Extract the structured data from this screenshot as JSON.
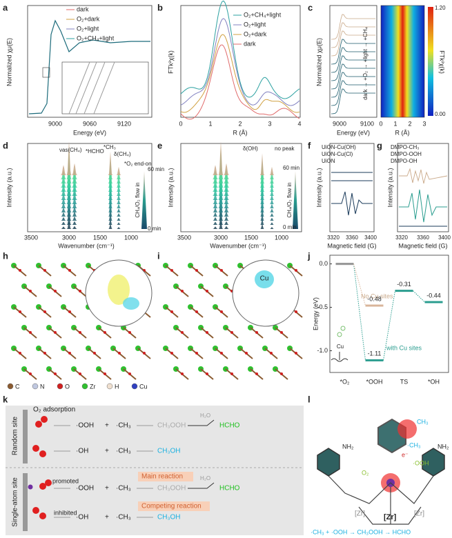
{
  "panels": {
    "a": {
      "letter": "a",
      "ylabel": "Normalized χμ(E)",
      "xlabel": "Energy (eV)",
      "xticks": [
        "9000",
        "9060",
        "9120"
      ],
      "legend": [
        "dark",
        "O₂+dark",
        "O₂+light",
        "O₂+CH₄+light"
      ]
    },
    "b": {
      "letter": "b",
      "ylabel": "FTk²χ(k)",
      "xlabel": "R (Å)",
      "xticks": [
        "0",
        "1",
        "2",
        "3",
        "4"
      ],
      "legend": [
        "O₂+CH₄+light",
        "O₂+light",
        "O₂+dark",
        "dark"
      ]
    },
    "c": {
      "letter": "c",
      "ylabel": "Normalized χμ(E)",
      "xlabel": "Energy (eV)",
      "xticks": [
        "9000",
        "9100"
      ],
      "sequence": "dark → +O₂ → +light → +CH₄",
      "xlabel2": "R (Å)",
      "xticks2": [
        "0",
        "1",
        "2",
        "3"
      ],
      "cbar_label": "FTk²χ(k)",
      "cbar_ticks": [
        "1.20",
        "0.00"
      ]
    },
    "d": {
      "letter": "d",
      "ylabel": "Intensity (a.u.)",
      "xlabel": "Wavenumber (cm⁻¹)",
      "xticks": [
        "3500",
        "3000",
        "1500",
        "1000"
      ],
      "annotations": [
        "νas(CH₄)",
        "*HCHO",
        "*CH₃",
        "δ(CH₄)",
        "*O₂ end-on"
      ],
      "flow": "CH₄/O₂ flow in",
      "time_end": "60 min",
      "time_start": "0 min"
    },
    "e": {
      "letter": "e",
      "ylabel": "Intensity (a.u.)",
      "xlabel": "Wavenumber (cm⁻¹)",
      "xticks": [
        "3500",
        "3000",
        "1500",
        "1000"
      ],
      "annotations": [
        "δ(OH)",
        "no peak"
      ],
      "flow": "CH₄/O₂ flow in",
      "time_end": "60 min",
      "time_start": "0 min"
    },
    "f": {
      "letter": "f",
      "ylabel": "Intensity (a.u.)",
      "xlabel": "Magnetic field (G)",
      "xticks": [
        "3320",
        "3360",
        "3400"
      ],
      "legend": [
        "UiON-Cu(OH)",
        "UiON-Cu(Cl)",
        "UiON"
      ]
    },
    "g": {
      "letter": "g",
      "ylabel": "Intensity (a.u.)",
      "xlabel": "Magnetic field (G)",
      "xticks": [
        "3320",
        "3360",
        "3400"
      ],
      "legend": [
        "DMPO-CH₃",
        "DMPO-OOH",
        "DMPO-OH"
      ]
    },
    "h": {
      "letter": "h",
      "atoms": [
        "C",
        "N",
        "O",
        "Zr",
        "H",
        "Cu"
      ]
    },
    "i": {
      "letter": "i",
      "label": "Cu"
    },
    "j": {
      "letter": "j",
      "no_cu": "No Cu sites",
      "with_cu": "with Cu sites",
      "cu": "Cu"
    },
    "k": {
      "letter": "k",
      "adsorption": "O₂ adsorption",
      "random": "Random site",
      "single": "Single-atom site",
      "rows": [
        [
          "·OOH",
          "+",
          "·CH₃",
          "CH₃OOH",
          "HCHO",
          "H₂O"
        ],
        [
          "·OH",
          "+",
          "·CH₃",
          "CH₃OH"
        ],
        [
          "·OOH",
          "+",
          "·CH₃",
          "CH₃OOH",
          "HCHO",
          "H₂O"
        ],
        [
          "·OH",
          "+",
          "·CH₃",
          "CH₃OH"
        ]
      ],
      "promoted": "promoted",
      "main": "Main reaction",
      "inhibited": "inhibited",
      "competing": "Competing reaction"
    },
    "l": {
      "letter": "l",
      "labels": [
        "NH₂",
        "NH₂",
        "CH₃",
        "e⁻",
        "·CH₃",
        "·OOH",
        "O₂",
        "[Zr]",
        "[Zr]",
        "[Zr]"
      ],
      "scheme": "·CH₃ + ·OOH → CH₃OOH → HCHO"
    }
  },
  "chart_data": {
    "type": "energy",
    "ylabel": "Energy (eV)",
    "categories": [
      "*O₂",
      "*OOH",
      "TS",
      "*OH"
    ],
    "ylim": [
      -1.25,
      0.1
    ],
    "yticks": [
      {
        "value": 0,
        "label": "0.0"
      },
      {
        "value": -0.5,
        "label": "-0.5"
      },
      {
        "value": -1,
        "label": "-1.0"
      }
    ],
    "series": [
      {
        "name": "with Cu sites",
        "color": "#2a9d8f",
        "values": [
          0,
          -1.11,
          -0.31,
          -0.44
        ]
      },
      {
        "name": "No Cu sites",
        "color": "#d9b49a",
        "values": [
          0,
          -0.48,
          null,
          null
        ]
      }
    ]
  }
}
